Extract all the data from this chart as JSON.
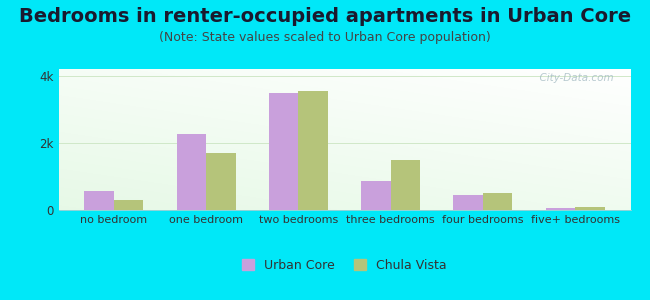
{
  "title": "Bedrooms in renter-occupied apartments in Urban Core",
  "subtitle": "(Note: State values scaled to Urban Core population)",
  "categories": [
    "no bedroom",
    "one bedroom",
    "two bedrooms",
    "three bedrooms",
    "four bedrooms",
    "five+ bedrooms"
  ],
  "urban_core": [
    580,
    2250,
    3500,
    850,
    440,
    55
  ],
  "chula_vista": [
    300,
    1700,
    3550,
    1500,
    510,
    75
  ],
  "urban_core_color": "#c9a0dc",
  "chula_vista_color": "#b5c47a",
  "ylim": [
    0,
    4200
  ],
  "yticks": [
    0,
    2000,
    4000
  ],
  "ytick_labels": [
    "0",
    "2k",
    "4k"
  ],
  "bar_width": 0.32,
  "background_outer": "#00e8f8",
  "title_fontsize": 14,
  "subtitle_fontsize": 9,
  "watermark": "  City-Data.com"
}
